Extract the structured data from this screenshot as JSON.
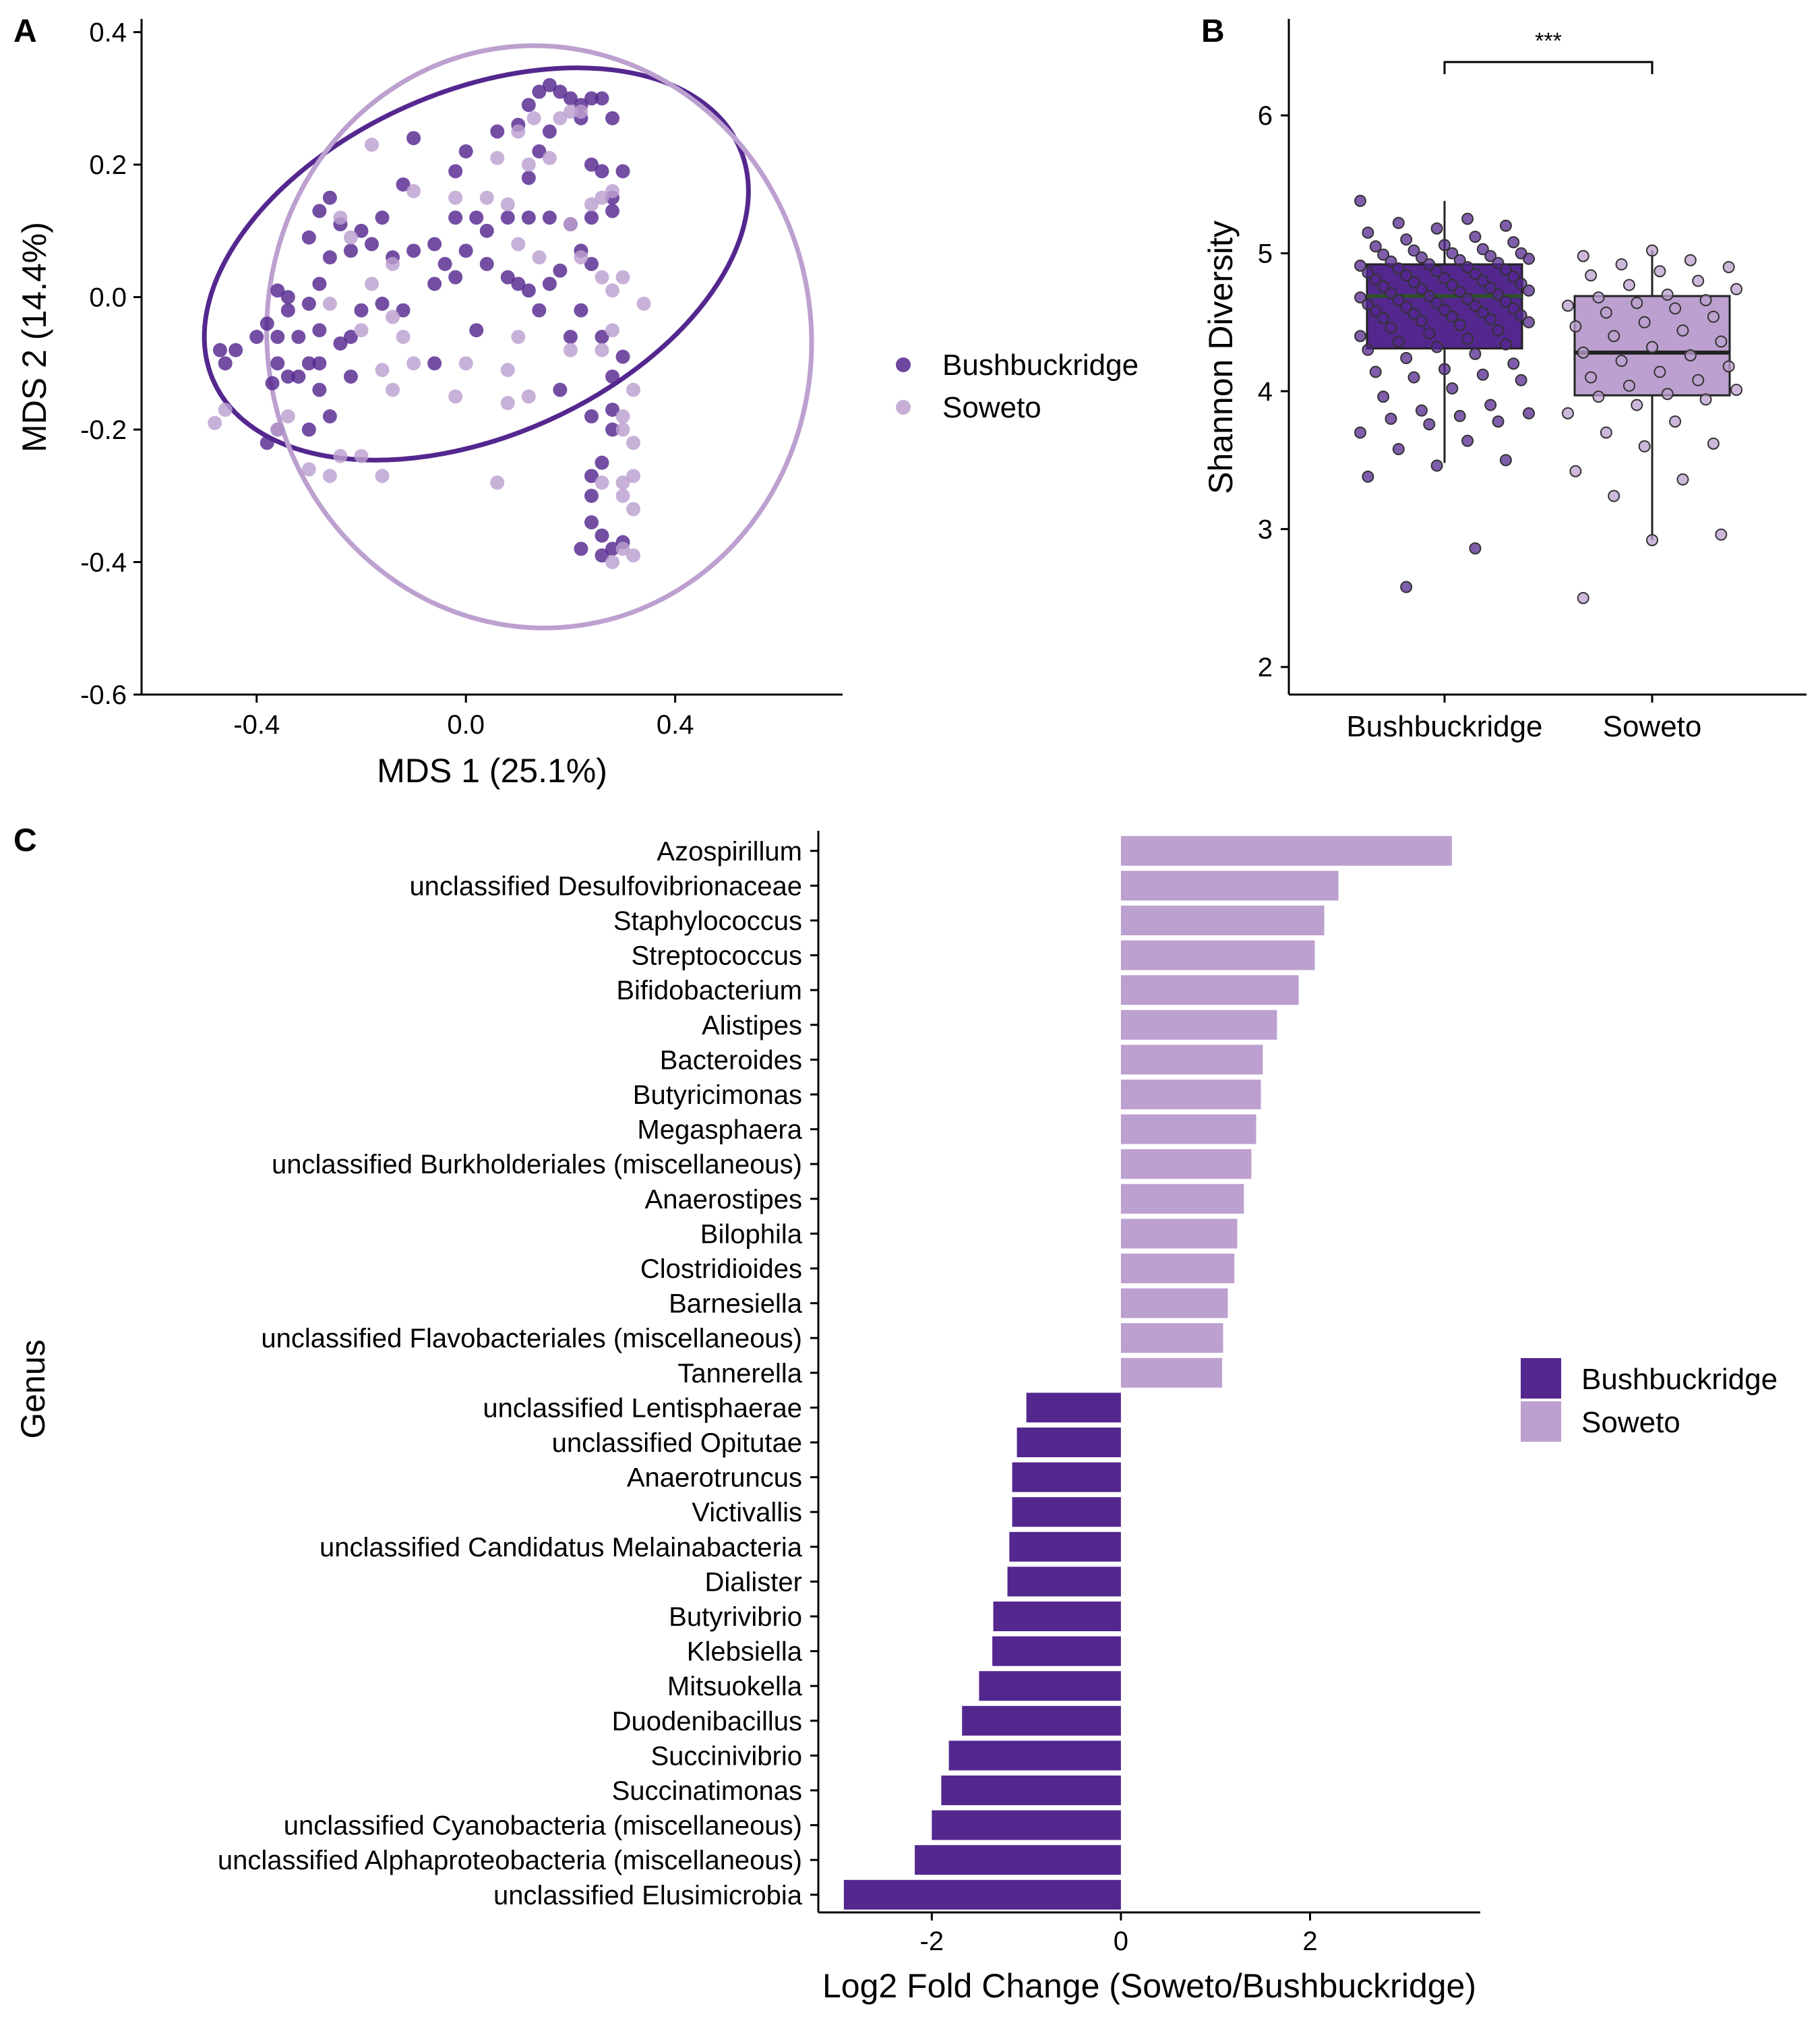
{
  "colors": {
    "bushbuckridge": "#54278f",
    "soweto": "#bca0cf",
    "median_line": "#2f4f2f",
    "axis": "#000000"
  },
  "panel_a": {
    "letter": "A",
    "xlabel": "MDS 1 (25.1%)",
    "ylabel": "MDS 2 (14.4%)",
    "legend": [
      "Bushbuckridge",
      "Soweto"
    ]
  },
  "panel_b": {
    "letter": "B",
    "ylabel": "Shannon Diversity",
    "significance": "***"
  },
  "panel_c": {
    "letter": "C",
    "xlabel": "Log2 Fold Change (Soweto/Bushbuckridge)",
    "ylabel": "Genus",
    "legend": [
      "Bushbuckridge",
      "Soweto"
    ]
  },
  "chart_data": [
    {
      "type": "scatter",
      "xlabel": "MDS 1 (25.1%)",
      "ylabel": "MDS 2 (14.4%)",
      "xlim": [
        -0.62,
        0.72
      ],
      "ylim": [
        -0.6,
        0.42
      ],
      "xticks": [
        -0.4,
        0.0,
        0.4
      ],
      "xtick_labels": [
        "-0.4",
        "0.0",
        "0.4"
      ],
      "yticks": [
        0.4,
        0.2,
        0.0,
        -0.2,
        -0.4,
        -0.6
      ],
      "ytick_labels": [
        "0.4",
        "0.2",
        "0.0",
        "-0.2",
        "-0.4",
        "-0.6"
      ],
      "legend_position": "right",
      "grid": false,
      "series": [
        {
          "name": "Bushbuckridge",
          "ellipse": {
            "center": [
              0.02,
              0.05
            ],
            "rx": 0.55,
            "ry": 0.26,
            "angle_deg": 24
          },
          "points": [
            [
              0.12,
              0.29
            ],
            [
              0.14,
              0.31
            ],
            [
              0.16,
              0.32
            ],
            [
              0.18,
              0.31
            ],
            [
              0.2,
              0.3
            ],
            [
              0.22,
              0.29
            ],
            [
              0.24,
              0.3
            ],
            [
              0.26,
              0.3
            ],
            [
              0.1,
              0.26
            ],
            [
              0.16,
              0.25
            ],
            [
              0.22,
              0.27
            ],
            [
              0.14,
              0.22
            ],
            [
              0.12,
              0.18
            ],
            [
              0.28,
              0.27
            ],
            [
              0.06,
              0.25
            ],
            [
              -0.1,
              0.24
            ],
            [
              -0.02,
              0.19
            ],
            [
              0.0,
              0.22
            ],
            [
              -0.12,
              0.17
            ],
            [
              -0.16,
              0.12
            ],
            [
              -0.2,
              0.1
            ],
            [
              -0.24,
              0.11
            ],
            [
              -0.26,
              0.15
            ],
            [
              -0.28,
              0.13
            ],
            [
              -0.3,
              0.09
            ],
            [
              -0.22,
              0.07
            ],
            [
              -0.18,
              0.08
            ],
            [
              -0.14,
              0.06
            ],
            [
              -0.1,
              0.07
            ],
            [
              -0.06,
              0.08
            ],
            [
              -0.02,
              0.12
            ],
            [
              0.02,
              0.12
            ],
            [
              0.04,
              0.1
            ],
            [
              0.08,
              0.12
            ],
            [
              0.12,
              0.12
            ],
            [
              0.16,
              0.12
            ],
            [
              0.2,
              0.11
            ],
            [
              0.24,
              0.12
            ],
            [
              0.28,
              0.13
            ],
            [
              0.3,
              0.19
            ],
            [
              0.26,
              0.19
            ],
            [
              0.24,
              0.2
            ],
            [
              0.28,
              0.15
            ],
            [
              -0.04,
              0.05
            ],
            [
              -0.02,
              0.03
            ],
            [
              0.0,
              0.07
            ],
            [
              0.04,
              0.05
            ],
            [
              0.08,
              0.03
            ],
            [
              0.12,
              0.01
            ],
            [
              0.16,
              0.02
            ],
            [
              0.22,
              0.07
            ],
            [
              0.24,
              0.05
            ],
            [
              0.18,
              0.04
            ],
            [
              -0.26,
              0.06
            ],
            [
              -0.28,
              0.02
            ],
            [
              -0.3,
              -0.01
            ],
            [
              -0.34,
              -0.02
            ],
            [
              -0.36,
              0.01
            ],
            [
              -0.34,
              0.0
            ],
            [
              -0.38,
              -0.04
            ],
            [
              -0.4,
              -0.06
            ],
            [
              -0.44,
              -0.08
            ],
            [
              -0.47,
              -0.08
            ],
            [
              -0.46,
              -0.1
            ],
            [
              -0.36,
              -0.06
            ],
            [
              -0.32,
              -0.06
            ],
            [
              -0.28,
              -0.05
            ],
            [
              -0.24,
              -0.07
            ],
            [
              -0.22,
              -0.06
            ],
            [
              -0.28,
              -0.1
            ],
            [
              -0.22,
              -0.12
            ],
            [
              -0.16,
              -0.01
            ],
            [
              -0.2,
              -0.02
            ],
            [
              -0.12,
              -0.02
            ],
            [
              -0.06,
              0.02
            ],
            [
              -0.3,
              -0.1
            ],
            [
              -0.36,
              -0.1
            ],
            [
              -0.37,
              -0.13
            ],
            [
              -0.34,
              -0.12
            ],
            [
              -0.32,
              -0.12
            ],
            [
              -0.28,
              -0.14
            ],
            [
              -0.26,
              -0.18
            ],
            [
              -0.3,
              -0.2
            ],
            [
              -0.36,
              -0.2
            ],
            [
              -0.38,
              -0.22
            ],
            [
              0.1,
              0.02
            ],
            [
              0.14,
              -0.02
            ],
            [
              0.22,
              -0.02
            ],
            [
              0.2,
              -0.06
            ],
            [
              0.26,
              -0.06
            ],
            [
              0.28,
              -0.12
            ],
            [
              0.3,
              -0.09
            ],
            [
              0.18,
              -0.14
            ],
            [
              0.28,
              -0.17
            ],
            [
              0.24,
              -0.18
            ],
            [
              0.28,
              -0.2
            ],
            [
              0.26,
              -0.25
            ],
            [
              0.24,
              -0.27
            ],
            [
              0.24,
              -0.3
            ],
            [
              0.24,
              -0.34
            ],
            [
              0.26,
              -0.36
            ],
            [
              0.28,
              -0.38
            ],
            [
              0.3,
              -0.37
            ],
            [
              0.22,
              -0.38
            ],
            [
              0.26,
              -0.39
            ],
            [
              -0.06,
              -0.1
            ],
            [
              0.02,
              -0.05
            ]
          ]
        },
        {
          "name": "Soweto",
          "ellipse": {
            "center": [
              0.14,
              -0.06
            ],
            "rx": 0.52,
            "ry": 0.44,
            "angle_deg": 8
          },
          "points": [
            [
              0.1,
              0.25
            ],
            [
              0.13,
              0.27
            ],
            [
              0.18,
              0.27
            ],
            [
              0.2,
              0.28
            ],
            [
              0.06,
              0.21
            ],
            [
              0.12,
              0.2
            ],
            [
              0.16,
              0.21
            ],
            [
              0.22,
              0.28
            ],
            [
              -0.18,
              0.23
            ],
            [
              -0.1,
              0.16
            ],
            [
              -0.02,
              0.15
            ],
            [
              0.04,
              0.15
            ],
            [
              0.08,
              0.14
            ],
            [
              0.2,
              0.11
            ],
            [
              0.24,
              0.14
            ],
            [
              0.26,
              0.15
            ],
            [
              0.28,
              0.16
            ],
            [
              0.1,
              0.08
            ],
            [
              0.14,
              0.06
            ],
            [
              -0.24,
              0.12
            ],
            [
              -0.22,
              0.09
            ],
            [
              -0.14,
              0.05
            ],
            [
              -0.18,
              0.02
            ],
            [
              -0.26,
              -0.01
            ],
            [
              -0.2,
              -0.05
            ],
            [
              -0.14,
              -0.03
            ],
            [
              -0.12,
              -0.06
            ],
            [
              0.22,
              0.06
            ],
            [
              0.26,
              0.03
            ],
            [
              0.28,
              0.01
            ],
            [
              0.3,
              0.03
            ],
            [
              0.34,
              -0.01
            ],
            [
              0.28,
              -0.05
            ],
            [
              0.26,
              -0.08
            ],
            [
              0.2,
              -0.08
            ],
            [
              0.1,
              -0.06
            ],
            [
              0.0,
              -0.1
            ],
            [
              0.08,
              -0.11
            ],
            [
              -0.16,
              -0.11
            ],
            [
              -0.14,
              -0.14
            ],
            [
              -0.02,
              -0.15
            ],
            [
              0.12,
              -0.15
            ],
            [
              0.08,
              -0.16
            ],
            [
              0.32,
              -0.14
            ],
            [
              0.3,
              -0.18
            ],
            [
              0.3,
              -0.2
            ],
            [
              0.32,
              -0.22
            ],
            [
              0.32,
              -0.27
            ],
            [
              0.26,
              -0.28
            ],
            [
              0.3,
              -0.28
            ],
            [
              0.3,
              -0.3
            ],
            [
              0.32,
              -0.32
            ],
            [
              0.3,
              -0.38
            ],
            [
              0.32,
              -0.39
            ],
            [
              0.28,
              -0.4
            ],
            [
              -0.46,
              -0.17
            ],
            [
              -0.48,
              -0.19
            ],
            [
              -0.34,
              -0.18
            ],
            [
              -0.36,
              -0.2
            ],
            [
              -0.3,
              -0.26
            ],
            [
              -0.24,
              -0.24
            ],
            [
              -0.26,
              -0.27
            ],
            [
              -0.2,
              -0.24
            ],
            [
              -0.16,
              -0.27
            ],
            [
              0.06,
              -0.28
            ],
            [
              -0.1,
              -0.1
            ]
          ]
        }
      ]
    },
    {
      "type": "box",
      "ylabel": "Shannon Diversity",
      "categories": [
        "Bushbuckridge",
        "Soweto"
      ],
      "ylim": [
        1.8,
        6.7
      ],
      "yticks": [
        2,
        3,
        4,
        5,
        6
      ],
      "ytick_labels": [
        "2",
        "3",
        "4",
        "5",
        "6"
      ],
      "significance": "***",
      "boxes": [
        {
          "name": "Bushbuckridge",
          "whisker_low": 3.48,
          "q1": 4.31,
          "median": 4.69,
          "q3": 4.92,
          "whisker_high": 5.38
        },
        {
          "name": "Soweto",
          "whisker_low": 2.92,
          "q1": 3.97,
          "median": 4.28,
          "q3": 4.69,
          "whisker_high": 5.02
        }
      ],
      "series": [
        {
          "name": "Bushbuckridge",
          "values": [
            5.38,
            5.25,
            5.22,
            5.2,
            5.18,
            5.15,
            5.12,
            5.1,
            5.08,
            5.06,
            5.05,
            5.03,
            5.02,
            5.0,
            5.0,
            4.99,
            4.98,
            4.97,
            4.96,
            4.95,
            4.94,
            4.93,
            4.92,
            4.91,
            4.9,
            4.89,
            4.88,
            4.87,
            4.86,
            4.85,
            4.84,
            4.83,
            4.82,
            4.81,
            4.8,
            4.79,
            4.78,
            4.77,
            4.76,
            4.75,
            4.74,
            4.73,
            4.72,
            4.71,
            4.7,
            4.69,
            4.68,
            4.67,
            4.66,
            4.65,
            4.64,
            4.63,
            4.62,
            4.61,
            4.6,
            4.59,
            4.58,
            4.57,
            4.56,
            4.55,
            4.54,
            4.53,
            4.52,
            4.51,
            4.5,
            4.48,
            4.46,
            4.44,
            4.42,
            4.4,
            4.38,
            4.36,
            4.34,
            4.32,
            4.3,
            4.27,
            4.24,
            4.2,
            4.16,
            4.14,
            4.12,
            4.1,
            4.08,
            4.02,
            3.96,
            3.9,
            3.86,
            3.84,
            3.82,
            3.8,
            3.78,
            3.76,
            3.7,
            3.64,
            3.58,
            3.5,
            3.46,
            3.38,
            2.86,
            2.58
          ]
        },
        {
          "name": "Soweto",
          "values": [
            5.02,
            4.98,
            4.95,
            4.92,
            4.9,
            4.87,
            4.84,
            4.8,
            4.77,
            4.74,
            4.7,
            4.68,
            4.66,
            4.64,
            4.62,
            4.6,
            4.57,
            4.54,
            4.5,
            4.47,
            4.44,
            4.4,
            4.36,
            4.32,
            4.28,
            4.26,
            4.22,
            4.18,
            4.14,
            4.1,
            4.08,
            4.04,
            4.01,
            3.98,
            3.96,
            3.94,
            3.9,
            3.84,
            3.78,
            3.7,
            3.62,
            3.6,
            3.42,
            3.36,
            3.24,
            2.96,
            2.92,
            2.5
          ]
        }
      ]
    },
    {
      "type": "bar",
      "orientation": "horizontal",
      "xlabel": "Log2 Fold Change (Soweto/Bushbuckridge)",
      "ylabel": "Genus",
      "xlim": [
        -3.2,
        3.8
      ],
      "xticks": [
        -2,
        0,
        2
      ],
      "xtick_labels": [
        "-2",
        "0",
        "2"
      ],
      "legend_position": "right",
      "grid": false,
      "categories": [
        "Azospirillum",
        "unclassified Desulfovibrionaceae",
        "Staphylococcus",
        "Streptococcus",
        "Bifidobacterium",
        "Alistipes",
        "Bacteroides",
        "Butyricimonas",
        "Megasphaera",
        "unclassified Burkholderiales (miscellaneous)",
        "Anaerostipes",
        "Bilophila",
        "Clostridioides",
        "Barnesiella",
        "unclassified Flavobacteriales (miscellaneous)",
        "Tannerella",
        "unclassified Lentisphaerae",
        "unclassified Opitutae",
        "Anaerotruncus",
        "Victivallis",
        "unclassified Candidatus Melainabacteria",
        "Dialister",
        "Butyrivibrio",
        "Klebsiella",
        "Mitsuokella",
        "Duodenibacillus",
        "Succinivibrio",
        "Succinatimonas",
        "unclassified Cyanobacteria (miscellaneous)",
        "unclassified Alphaproteobacteria (miscellaneous)",
        "unclassified Elusimicrobia"
      ],
      "values": [
        3.5,
        2.3,
        2.15,
        2.05,
        1.88,
        1.65,
        1.5,
        1.48,
        1.43,
        1.38,
        1.3,
        1.23,
        1.2,
        1.13,
        1.08,
        1.07,
        -1.0,
        -1.1,
        -1.15,
        -1.15,
        -1.18,
        -1.2,
        -1.35,
        -1.36,
        -1.5,
        -1.68,
        -1.82,
        -1.9,
        -2.0,
        -2.18,
        -2.93
      ],
      "group": [
        "Soweto",
        "Soweto",
        "Soweto",
        "Soweto",
        "Soweto",
        "Soweto",
        "Soweto",
        "Soweto",
        "Soweto",
        "Soweto",
        "Soweto",
        "Soweto",
        "Soweto",
        "Soweto",
        "Soweto",
        "Soweto",
        "Bushbuckridge",
        "Bushbuckridge",
        "Bushbuckridge",
        "Bushbuckridge",
        "Bushbuckridge",
        "Bushbuckridge",
        "Bushbuckridge",
        "Bushbuckridge",
        "Bushbuckridge",
        "Bushbuckridge",
        "Bushbuckridge",
        "Bushbuckridge",
        "Bushbuckridge",
        "Bushbuckridge",
        "Bushbuckridge"
      ]
    }
  ]
}
